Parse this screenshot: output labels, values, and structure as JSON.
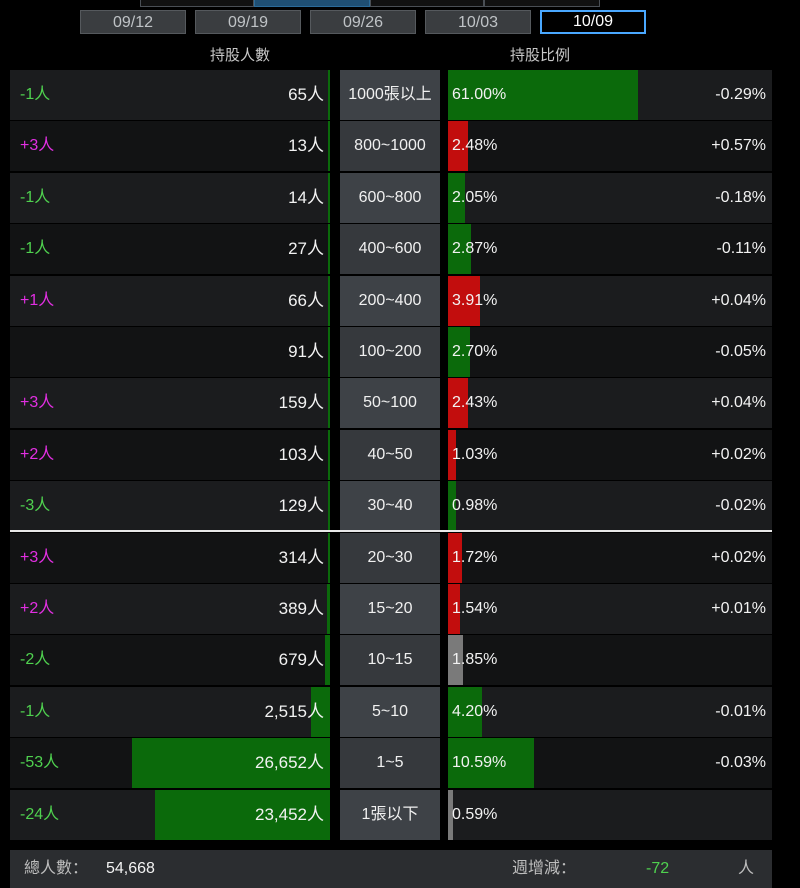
{
  "dates": [
    "09/12",
    "09/19",
    "09/26",
    "10/03",
    "10/09"
  ],
  "active_date": "10/09",
  "headers": {
    "holders": "持股人數",
    "ratio": "持股比例"
  },
  "rows": [
    {
      "change": "-1人",
      "holders": "65人",
      "range": "1000張以上",
      "pct": "61.00%",
      "pct_change": "-0.29%",
      "holders_share": 0.001,
      "pct_value": 61.0,
      "pct_dir": "green"
    },
    {
      "change": "+3人",
      "holders": "13人",
      "range": "800~1000",
      "pct": "2.48%",
      "pct_change": "+0.57%",
      "holders_share": 0.0002,
      "pct_value": 2.48,
      "pct_dir": "red"
    },
    {
      "change": "-1人",
      "holders": "14人",
      "range": "600~800",
      "pct": "2.05%",
      "pct_change": "-0.18%",
      "holders_share": 0.0003,
      "pct_value": 2.05,
      "pct_dir": "green"
    },
    {
      "change": "-1人",
      "holders": "27人",
      "range": "400~600",
      "pct": "2.87%",
      "pct_change": "-0.11%",
      "holders_share": 0.0005,
      "pct_value": 2.87,
      "pct_dir": "green"
    },
    {
      "change": "+1人",
      "holders": "66人",
      "range": "200~400",
      "pct": "3.91%",
      "pct_change": "+0.04%",
      "holders_share": 0.001,
      "pct_value": 3.91,
      "pct_dir": "red"
    },
    {
      "change": "",
      "holders": "91人",
      "range": "100~200",
      "pct": "2.70%",
      "pct_change": "-0.05%",
      "holders_share": 0.002,
      "pct_value": 2.7,
      "pct_dir": "green"
    },
    {
      "change": "+3人",
      "holders": "159人",
      "range": "50~100",
      "pct": "2.43%",
      "pct_change": "+0.04%",
      "holders_share": 0.003,
      "pct_value": 2.43,
      "pct_dir": "red"
    },
    {
      "change": "+2人",
      "holders": "103人",
      "range": "40~50",
      "pct": "1.03%",
      "pct_change": "+0.02%",
      "holders_share": 0.002,
      "pct_value": 1.03,
      "pct_dir": "red"
    },
    {
      "change": "-3人",
      "holders": "129人",
      "range": "30~40",
      "pct": "0.98%",
      "pct_change": "-0.02%",
      "holders_share": 0.002,
      "pct_value": 0.98,
      "pct_dir": "green"
    },
    {
      "change": "+3人",
      "holders": "314人",
      "range": "20~30",
      "pct": "1.72%",
      "pct_change": "+0.02%",
      "holders_share": 0.006,
      "pct_value": 1.72,
      "pct_dir": "red"
    },
    {
      "change": "+2人",
      "holders": "389人",
      "range": "15~20",
      "pct": "1.54%",
      "pct_change": "+0.01%",
      "holders_share": 0.007,
      "pct_value": 1.54,
      "pct_dir": "red"
    },
    {
      "change": "-2人",
      "holders": "679人",
      "range": "10~15",
      "pct": "1.85%",
      "pct_change": "",
      "holders_share": 0.012,
      "pct_value": 1.85,
      "pct_dir": "gray"
    },
    {
      "change": "-1人",
      "holders": "2,515人",
      "range": "5~10",
      "pct": "4.20%",
      "pct_change": "-0.01%",
      "holders_share": 0.046,
      "pct_value": 4.2,
      "pct_dir": "green"
    },
    {
      "change": "-53人",
      "holders": "26,652人",
      "range": "1~5",
      "pct": "10.59%",
      "pct_change": "-0.03%",
      "holders_share": 0.4875,
      "pct_value": 10.59,
      "pct_dir": "green"
    },
    {
      "change": "-24人",
      "holders": "23,452人",
      "range": "1張以下",
      "pct": "0.59%",
      "pct_change": "",
      "holders_share": 0.429,
      "pct_value": 0.59,
      "pct_dir": "gray"
    }
  ],
  "footer": {
    "total_label": "總人數：",
    "total_value": "54,668",
    "weekly_label": "週增減：",
    "weekly_value": "-72",
    "weekly_unit": "人"
  }
}
